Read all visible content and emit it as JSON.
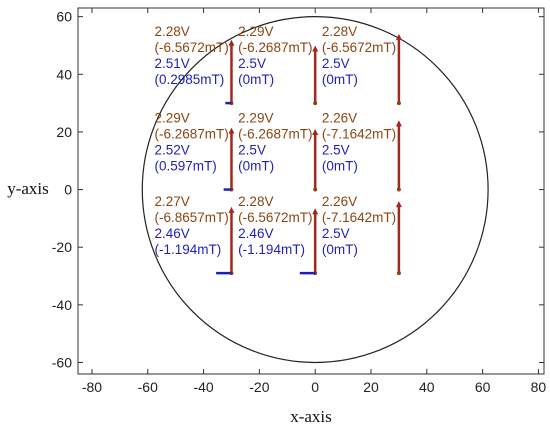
{
  "chart_data": {
    "type": "scatter",
    "title": "",
    "xlabel": "x-axis",
    "ylabel": "y-axis",
    "xlim": [
      -85,
      82
    ],
    "ylim": [
      -64,
      63
    ],
    "x_ticks": [
      -80,
      -60,
      -40,
      -20,
      0,
      20,
      40,
      60,
      80
    ],
    "y_ticks": [
      -60,
      -40,
      -20,
      0,
      20,
      40,
      60
    ],
    "grid": false,
    "circle": {
      "cx": 0,
      "cy": 0,
      "r": 60
    },
    "colors": {
      "red": "#a0281e",
      "blue": "#1f1fb5",
      "brown": "#8b4513",
      "circle": "#222222"
    },
    "points": [
      {
        "x": -30,
        "y": 30,
        "red_top": 52,
        "blue_len": 2.2,
        "v1": "2.28V",
        "b1": "(-6.5672mT)",
        "v2": "2.51V",
        "b2": "(0.2985mT)"
      },
      {
        "x": 0,
        "y": 30,
        "red_top": 50,
        "blue_len": 0,
        "v1": "2.29V",
        "b1": "(-6.2687mT)",
        "v2": "2.5V",
        "b2": "(0mT)"
      },
      {
        "x": 30,
        "y": 30,
        "red_top": 54,
        "blue_len": 0,
        "v1": "2.28V",
        "b1": "(-6.5672mT)",
        "v2": "2.5V",
        "b2": "(0mT)"
      },
      {
        "x": -30,
        "y": 0,
        "red_top": 21.5,
        "blue_len": 2.8,
        "v1": "2.29V",
        "b1": "(-6.2687mT)",
        "v2": "2.52V",
        "b2": "(0.597mT)"
      },
      {
        "x": 0,
        "y": 0,
        "red_top": 21,
        "blue_len": 0,
        "v1": "2.29V",
        "b1": "(-6.2687mT)",
        "v2": "2.5V",
        "b2": "(0mT)"
      },
      {
        "x": 30,
        "y": 0,
        "red_top": 24,
        "blue_len": 0,
        "v1": "2.26V",
        "b1": "(-7.1642mT)",
        "v2": "2.5V",
        "b2": "(0mT)"
      },
      {
        "x": -30,
        "y": -29,
        "red_top": -6,
        "blue_len": 5.5,
        "v1": "2.27V",
        "b1": "(-6.8657mT)",
        "v2": "2.46V",
        "b2": "(-1.194mT)"
      },
      {
        "x": 0,
        "y": -29,
        "red_top": -6.5,
        "blue_len": 5.5,
        "v1": "2.28V",
        "b1": "(-6.5672mT)",
        "v2": "2.46V",
        "b2": "(-1.194mT)"
      },
      {
        "x": 30,
        "y": -29,
        "red_top": -4,
        "blue_len": 0,
        "v1": "2.26V",
        "b1": "(-7.1642mT)",
        "v2": "2.5V",
        "b2": "(0mT)"
      }
    ]
  }
}
